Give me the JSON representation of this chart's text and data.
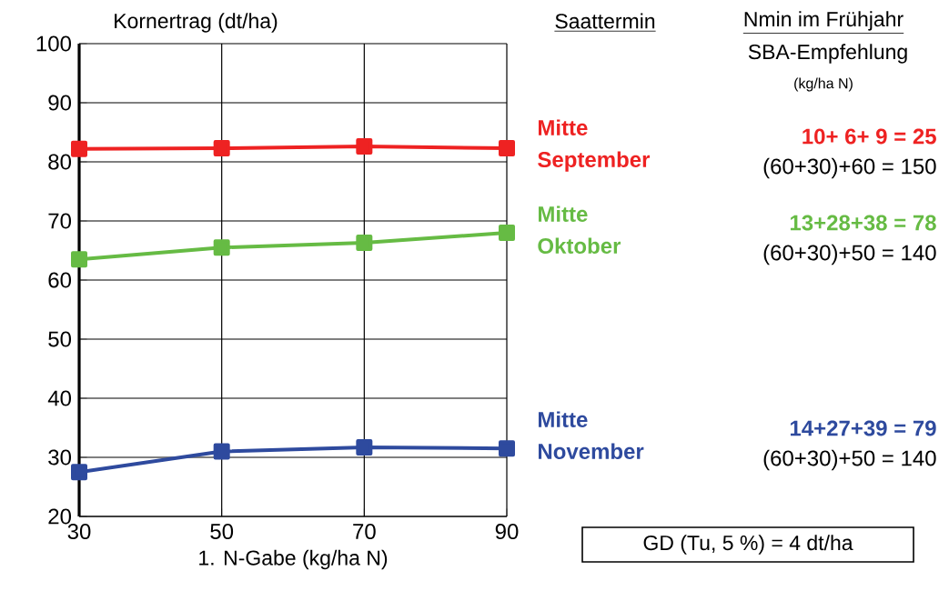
{
  "chart_data": {
    "type": "line",
    "xlabel": "1. N-Gabe (kg/ha N)",
    "ylabel": "Kornertrag (dt/ha)",
    "x": [
      30,
      50,
      70,
      90
    ],
    "series": [
      {
        "name": "Mitte September",
        "color": "#ee2222",
        "values": [
          82.2,
          82.3,
          82.6,
          82.3
        ]
      },
      {
        "name": "Mitte Oktober",
        "color": "#66bb44",
        "values": [
          63.5,
          65.5,
          66.3,
          68.0
        ]
      },
      {
        "name": "Mitte November",
        "color": "#2e4a9e",
        "values": [
          27.5,
          31.0,
          31.7,
          31.5
        ]
      }
    ],
    "xlim": [
      30,
      90
    ],
    "xticks": [
      30,
      50,
      70,
      90
    ],
    "ylim": [
      20,
      100
    ],
    "yticks": [
      20,
      30,
      40,
      50,
      60,
      70,
      80,
      90,
      100
    ],
    "grid": true,
    "marker": "square",
    "line_style": "solid",
    "annotations": [
      "Saattermin",
      "Nmin im Frühjahr",
      "SBA-Empfehlung",
      "(kg/ha N)",
      "10+ 6+ 9 =   25",
      "(60+30)+60 = 150",
      "13+28+38 =   78",
      "(60+30)+50 = 140",
      "14+27+39 =   79",
      "(60+30)+50 = 140",
      "GD (Tu, 5 %) = 4 dt/ha"
    ]
  }
}
